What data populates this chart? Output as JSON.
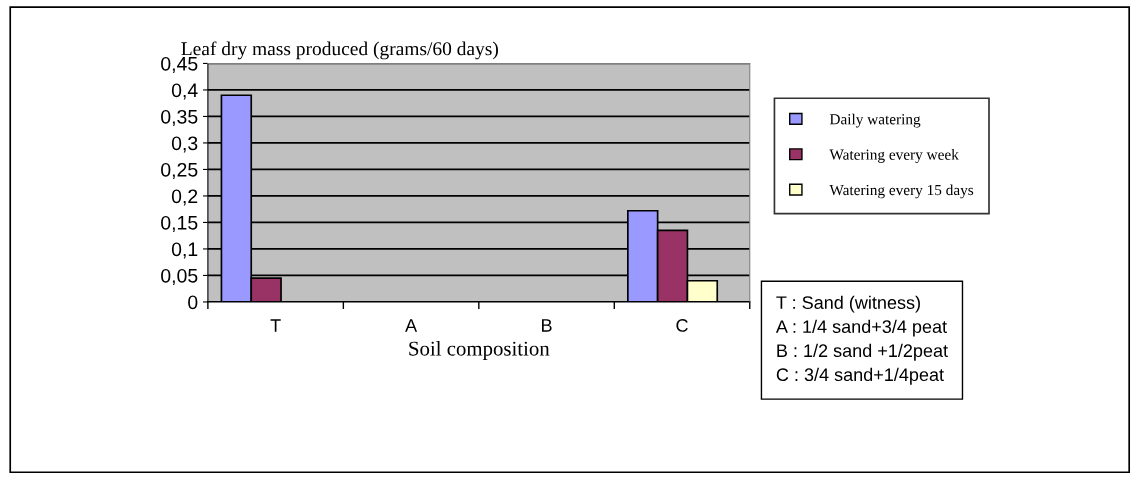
{
  "chart_data": {
    "type": "bar",
    "title": "Leaf dry mass produced (grams/60 days)",
    "xlabel": "Soil composition",
    "categories": [
      "T",
      "A",
      "B",
      "C"
    ],
    "series": [
      {
        "name": "Daily watering",
        "color": "#9999ff",
        "values": [
          0.39,
          null,
          null,
          0.172
        ]
      },
      {
        "name": "Watering every week",
        "color": "#993366",
        "values": [
          0.045,
          null,
          null,
          0.135
        ]
      },
      {
        "name": "Watering every 15 days",
        "color": "#ffffcc",
        "values": [
          null,
          null,
          null,
          0.04
        ]
      }
    ],
    "ylim": [
      0,
      0.45
    ],
    "yticks": [
      {
        "value": 0,
        "label": "0"
      },
      {
        "value": 0.05,
        "label": "0,05"
      },
      {
        "value": 0.1,
        "label": "0,1"
      },
      {
        "value": 0.15,
        "label": "0,15"
      },
      {
        "value": 0.2,
        "label": "0,2"
      },
      {
        "value": 0.25,
        "label": "0,25"
      },
      {
        "value": 0.3,
        "label": "0,3"
      },
      {
        "value": 0.35,
        "label": "0,35"
      },
      {
        "value": 0.4,
        "label": "0,4"
      },
      {
        "value": 0.45,
        "label": "0,45"
      }
    ],
    "grid": "y",
    "legend": "right",
    "annotations": [
      "T : Sand (witness)",
      "A : 1/4 sand+3/4 peat",
      "B : 1/2 sand +1/2peat",
      "C : 3/4 sand+1/4peat"
    ]
  }
}
